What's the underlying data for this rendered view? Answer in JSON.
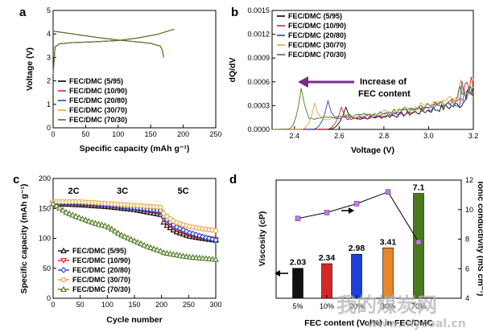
{
  "chart_data": [
    {
      "panel": "a",
      "type": "line",
      "xlabel": "Specific capacity (mAh g⁻¹)",
      "ylabel": "Voltage (V)",
      "xlim": [
        0,
        250
      ],
      "ylim": [
        0,
        5
      ],
      "xticks": [
        "0",
        "50",
        "100",
        "150",
        "200",
        "250"
      ],
      "yticks": [
        "0",
        "1",
        "2",
        "3",
        "4",
        "5"
      ],
      "legend_position": "bottom-left",
      "series": [
        {
          "name": "FEC/DMC (5/95)",
          "color": "#000000",
          "charge": [
            [
              0,
              2.3
            ],
            [
              3,
              3.45
            ],
            [
              10,
              3.58
            ],
            [
              30,
              3.63
            ],
            [
              60,
              3.66
            ],
            [
              100,
              3.72
            ],
            [
              130,
              3.83
            ],
            [
              160,
              3.98
            ],
            [
              180,
              4.15
            ],
            [
              186,
              4.2
            ]
          ],
          "discharge": [
            [
              0,
              4.12
            ],
            [
              10,
              4.08
            ],
            [
              40,
              3.96
            ],
            [
              70,
              3.84
            ],
            [
              100,
              3.74
            ],
            [
              130,
              3.66
            ],
            [
              150,
              3.6
            ],
            [
              165,
              3.48
            ],
            [
              168,
              3.3
            ],
            [
              170,
              3.0
            ]
          ]
        },
        {
          "name": "FEC/DMC (10/90)",
          "color": "#d62728",
          "charge": [
            [
              0,
              2.3
            ],
            [
              3,
              3.45
            ],
            [
              10,
              3.58
            ],
            [
              30,
              3.63
            ],
            [
              60,
              3.66
            ],
            [
              100,
              3.72
            ],
            [
              130,
              3.83
            ],
            [
              160,
              3.98
            ],
            [
              180,
              4.15
            ],
            [
              186,
              4.2
            ]
          ],
          "discharge": [
            [
              0,
              4.12
            ],
            [
              10,
              4.08
            ],
            [
              40,
              3.96
            ],
            [
              70,
              3.84
            ],
            [
              100,
              3.74
            ],
            [
              130,
              3.66
            ],
            [
              150,
              3.6
            ],
            [
              165,
              3.48
            ],
            [
              168,
              3.3
            ],
            [
              170,
              3.0
            ]
          ]
        },
        {
          "name": "FEC/DMC (20/80)",
          "color": "#1f3fd6",
          "charge": [
            [
              0,
              2.3
            ],
            [
              3,
              3.45
            ],
            [
              10,
              3.58
            ],
            [
              30,
              3.63
            ],
            [
              60,
              3.66
            ],
            [
              100,
              3.72
            ],
            [
              130,
              3.83
            ],
            [
              160,
              3.98
            ],
            [
              180,
              4.15
            ],
            [
              186,
              4.2
            ]
          ],
          "discharge": [
            [
              0,
              4.12
            ],
            [
              10,
              4.08
            ],
            [
              40,
              3.96
            ],
            [
              70,
              3.84
            ],
            [
              100,
              3.74
            ],
            [
              130,
              3.66
            ],
            [
              150,
              3.6
            ],
            [
              165,
              3.48
            ],
            [
              168,
              3.3
            ],
            [
              170,
              3.0
            ]
          ]
        },
        {
          "name": "FEC/DMC (30/70)",
          "color": "#e8a33d",
          "charge": [
            [
              0,
              2.3
            ],
            [
              3,
              3.45
            ],
            [
              10,
              3.58
            ],
            [
              30,
              3.63
            ],
            [
              60,
              3.66
            ],
            [
              100,
              3.72
            ],
            [
              130,
              3.83
            ],
            [
              160,
              3.98
            ],
            [
              180,
              4.15
            ],
            [
              186,
              4.2
            ]
          ],
          "discharge": [
            [
              0,
              4.12
            ],
            [
              10,
              4.08
            ],
            [
              40,
              3.96
            ],
            [
              70,
              3.84
            ],
            [
              100,
              3.74
            ],
            [
              130,
              3.66
            ],
            [
              150,
              3.6
            ],
            [
              165,
              3.48
            ],
            [
              168,
              3.3
            ],
            [
              170,
              3.0
            ]
          ]
        },
        {
          "name": "FEC/DMC (70/30)",
          "color": "#4b7a1e",
          "charge": [
            [
              0,
              2.3
            ],
            [
              3,
              3.45
            ],
            [
              10,
              3.58
            ],
            [
              30,
              3.63
            ],
            [
              60,
              3.66
            ],
            [
              100,
              3.72
            ],
            [
              130,
              3.83
            ],
            [
              160,
              3.98
            ],
            [
              180,
              4.15
            ],
            [
              186,
              4.2
            ]
          ],
          "discharge": [
            [
              0,
              4.12
            ],
            [
              10,
              4.08
            ],
            [
              40,
              3.96
            ],
            [
              70,
              3.84
            ],
            [
              100,
              3.74
            ],
            [
              130,
              3.66
            ],
            [
              150,
              3.6
            ],
            [
              165,
              3.48
            ],
            [
              168,
              3.3
            ],
            [
              170,
              3.0
            ]
          ]
        }
      ]
    },
    {
      "panel": "b",
      "type": "line",
      "xlabel": "Voltage (V)",
      "ylabel": "dQ/dV",
      "xlim": [
        2.3,
        3.2
      ],
      "ylim": [
        0,
        0.0015
      ],
      "xticks": [
        "2.4",
        "2.6",
        "2.8",
        "3.0",
        "3.2"
      ],
      "yticks": [
        "0.0000",
        "0.0003",
        "0.0006",
        "0.0009",
        "0.0012",
        "0.0015"
      ],
      "legend_position": "top-left",
      "annotation": "Increase of FEC content",
      "series": [
        {
          "name": "FEC/DMC (5/95)",
          "color": "#000000",
          "peak_v": 2.63,
          "peak": 0.00028,
          "onset": 2.54,
          "tail": 0.00035
        },
        {
          "name": "FEC/DMC (10/90)",
          "color": "#d62728",
          "peak_v": 2.61,
          "peak": 0.00028,
          "onset": 2.53,
          "tail": 0.00042
        },
        {
          "name": "FEC/DMC (20/80)",
          "color": "#1f3fd6",
          "peak_v": 2.55,
          "peak": 0.00036,
          "onset": 2.47,
          "tail": 0.00038
        },
        {
          "name": "FEC/DMC (30/70)",
          "color": "#e8a33d",
          "peak_v": 2.49,
          "peak": 0.00033,
          "onset": 2.42,
          "tail": 0.00045
        },
        {
          "name": "FEC/DMC (70/30)",
          "color": "#4b7a1e",
          "peak_v": 2.43,
          "peak": 0.00052,
          "onset": 2.36,
          "tail": 0.0004
        }
      ]
    },
    {
      "panel": "c",
      "type": "line",
      "xlabel": "Cycle number",
      "ylabel": "Specific capacity (mAh g⁻¹)",
      "xlim": [
        0,
        300
      ],
      "ylim": [
        0,
        200
      ],
      "xticks": [
        "0",
        "50",
        "100",
        "150",
        "200",
        "250",
        "300"
      ],
      "yticks": [
        "0",
        "50",
        "100",
        "150",
        "200"
      ],
      "rate_labels": [
        {
          "text": "2C",
          "x": 38,
          "y": 180
        },
        {
          "text": "3C",
          "x": 128,
          "y": 180
        },
        {
          "text": "5C",
          "x": 240,
          "y": 180
        }
      ],
      "legend_position": "bottom-left",
      "series": [
        {
          "name": "FEC/DMC (5/95)",
          "color": "#000000",
          "marker": "triangle",
          "points": [
            [
              0,
              158
            ],
            [
              50,
              156
            ],
            [
              100,
              153
            ],
            [
              150,
              148
            ],
            [
              198,
              140
            ],
            [
              205,
              125
            ],
            [
              225,
              112
            ],
            [
              250,
              104
            ],
            [
              275,
              100
            ],
            [
              300,
              97
            ]
          ]
        },
        {
          "name": "FEC/DMC (10/90)",
          "color": "#d62728",
          "marker": "triangle-down",
          "points": [
            [
              0,
              159
            ],
            [
              50,
              158
            ],
            [
              100,
              155
            ],
            [
              150,
              150
            ],
            [
              198,
              144
            ],
            [
              205,
              130
            ],
            [
              225,
              116
            ],
            [
              250,
              107
            ],
            [
              275,
              101
            ],
            [
              300,
              98
            ]
          ]
        },
        {
          "name": "FEC/DMC (20/80)",
          "color": "#1f3fd6",
          "marker": "diamond",
          "points": [
            [
              0,
              160
            ],
            [
              50,
              159
            ],
            [
              100,
              156
            ],
            [
              150,
              151
            ],
            [
              198,
              146
            ],
            [
              205,
              135
            ],
            [
              225,
              120
            ],
            [
              250,
              110
            ],
            [
              275,
              103
            ],
            [
              300,
              97
            ]
          ]
        },
        {
          "name": "FEC/DMC (30/70)",
          "color": "#e8a33d",
          "marker": "circle",
          "points": [
            [
              0,
              161
            ],
            [
              50,
              161
            ],
            [
              100,
              158
            ],
            [
              150,
              155
            ],
            [
              198,
              152
            ],
            [
              205,
              140
            ],
            [
              225,
              127
            ],
            [
              250,
              120
            ],
            [
              275,
              116
            ],
            [
              300,
              113
            ]
          ]
        },
        {
          "name": "FEC/DMC (70/30)",
          "color": "#4b7a1e",
          "marker": "triangle",
          "points": [
            [
              0,
              158
            ],
            [
              25,
              143
            ],
            [
              50,
              134
            ],
            [
              75,
              126
            ],
            [
              100,
              120
            ],
            [
              125,
              106
            ],
            [
              150,
              96
            ],
            [
              175,
              86
            ],
            [
              198,
              79
            ],
            [
              205,
              76
            ],
            [
              250,
              69
            ],
            [
              300,
              65
            ]
          ]
        }
      ]
    },
    {
      "panel": "d",
      "type": "bar",
      "xlabel": "FEC content (Vol%) in FEC/DMC",
      "ylabel": "Viscosity (cP)",
      "y2label": "Ionic conductivity (mS cm⁻¹)",
      "ylim": [
        0,
        8
      ],
      "y2lim": [
        4,
        12
      ],
      "y2ticks": [
        "4",
        "6",
        "8",
        "10",
        "12"
      ],
      "categories": [
        "5%",
        "10%",
        "20%",
        "30%",
        "70%"
      ],
      "values": [
        2.03,
        2.34,
        2.98,
        3.41,
        7.1
      ],
      "value_labels": [
        "2.03",
        "2.34",
        "2.98",
        "3.41",
        "7.1"
      ],
      "bar_colors": [
        "#111111",
        "#d62728",
        "#1f3fd6",
        "#e8872a",
        "#4b7a1e"
      ],
      "conductivity": [
        9.4,
        9.8,
        10.4,
        11.2,
        7.8
      ],
      "marker_color": "#c27be0"
    }
  ],
  "watermark": {
    "cn": "我的煤炭网",
    "url": "www.mycoal.cn"
  }
}
